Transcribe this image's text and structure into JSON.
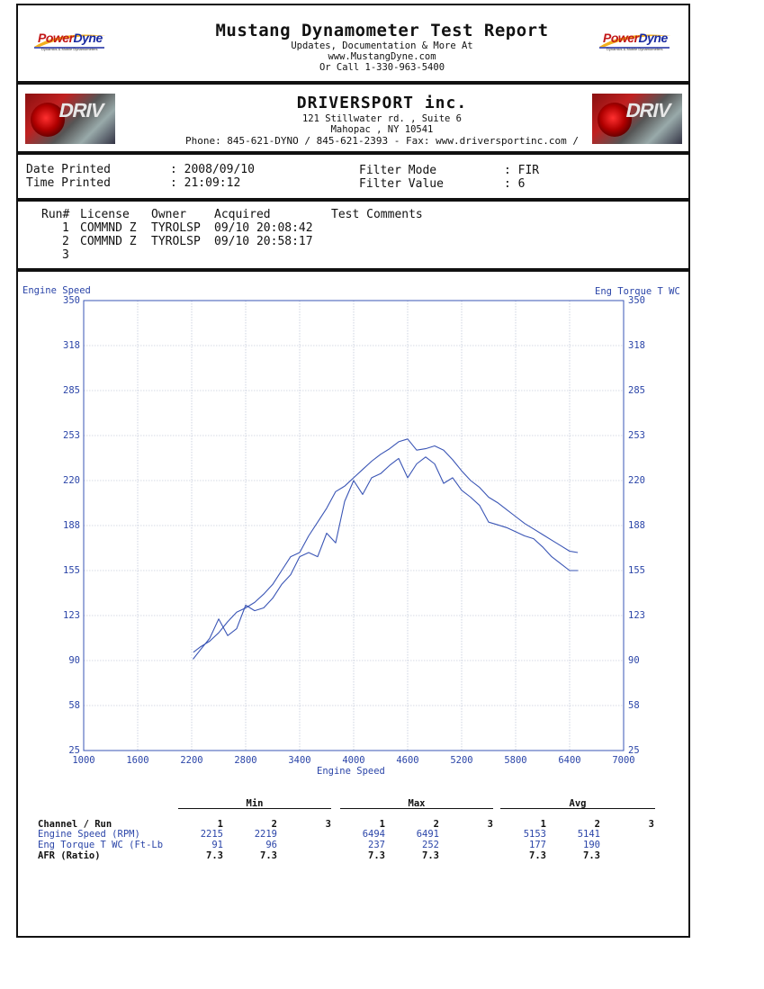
{
  "header": {
    "title": "Mustang Dynamometer Test Report",
    "line1": "Updates, Documentation & More At",
    "line2": "www.MustangDyne.com",
    "line3": "Or Call 1-330-963-5400",
    "logo_text_a": "Power",
    "logo_text_b": "Dyne",
    "logo_tag": "Dynamics & Mobile Dynamometers"
  },
  "shop": {
    "name": "DRIVERSPORT inc.",
    "address1": "121 Stillwater rd. , Suite 6",
    "address2": "Mahopac , NY  10541",
    "phone": "Phone: 845-621-DYNO / 845-621-2393 - Fax: www.driversportinc.com /",
    "image_brand": "DRIV"
  },
  "info": {
    "date_label": "Date Printed",
    "date_value": ": 2008/09/10",
    "time_label": "Time Printed",
    "time_value": ": 21:09:12",
    "filter_mode_label": "Filter Mode",
    "filter_mode_value": ": FIR",
    "filter_value_label": "Filter Value",
    "filter_value_value": ": 6"
  },
  "runs": {
    "headers": [
      "Run#",
      "License",
      "Owner",
      "Acquired",
      "Test Comments"
    ],
    "rows": [
      {
        "run": "1",
        "license": "COMMND Z",
        "owner": "TYROLSP",
        "acquired": "09/10 20:08:42"
      },
      {
        "run": "2",
        "license": "COMMND Z",
        "owner": "TYROLSP",
        "acquired": "09/10 20:58:17"
      },
      {
        "run": "3",
        "license": "",
        "owner": "",
        "acquired": ""
      }
    ]
  },
  "chart_data": {
    "type": "line",
    "left_axis_title": "Engine Speed",
    "right_axis_title": "Eng Torque T WC",
    "xlabel": "Engine Speed",
    "xlim": [
      1000,
      7000
    ],
    "ylim": [
      25,
      350
    ],
    "x_ticks": [
      "1000",
      "1600",
      "2200",
      "2800",
      "3400",
      "4000",
      "4600",
      "5200",
      "5800",
      "6400",
      "7000"
    ],
    "y_ticks": [
      "350",
      "318",
      "285",
      "253",
      "220",
      "188",
      "155",
      "123",
      "90",
      "58",
      "25"
    ],
    "color": "#3a55b5",
    "series": [
      {
        "name": "Run 1",
        "x": [
          2215,
          2300,
          2400,
          2500,
          2600,
          2700,
          2800,
          2900,
          3000,
          3100,
          3200,
          3300,
          3400,
          3500,
          3600,
          3700,
          3800,
          3900,
          4000,
          4100,
          4200,
          4300,
          4400,
          4500,
          4600,
          4700,
          4800,
          4900,
          5000,
          5100,
          5200,
          5300,
          5400,
          5500,
          5600,
          5700,
          5800,
          5900,
          6000,
          6100,
          6200,
          6300,
          6400,
          6494
        ],
        "y": [
          91,
          98,
          106,
          120,
          108,
          113,
          130,
          126,
          128,
          135,
          145,
          152,
          165,
          168,
          165,
          182,
          175,
          205,
          220,
          210,
          222,
          225,
          231,
          236,
          222,
          232,
          237,
          232,
          218,
          222,
          213,
          208,
          202,
          190,
          188,
          186,
          183,
          180,
          178,
          172,
          165,
          160,
          155,
          155
        ]
      },
      {
        "name": "Run 2",
        "x": [
          2219,
          2300,
          2400,
          2500,
          2600,
          2700,
          2800,
          2900,
          3000,
          3100,
          3200,
          3300,
          3400,
          3500,
          3600,
          3700,
          3800,
          3900,
          4000,
          4100,
          4200,
          4300,
          4400,
          4500,
          4600,
          4700,
          4800,
          4900,
          5000,
          5100,
          5200,
          5300,
          5400,
          5500,
          5600,
          5700,
          5800,
          5900,
          6000,
          6100,
          6200,
          6300,
          6400,
          6491
        ],
        "y": [
          96,
          100,
          104,
          110,
          118,
          125,
          128,
          132,
          138,
          145,
          155,
          165,
          168,
          180,
          190,
          200,
          212,
          216,
          222,
          228,
          234,
          239,
          243,
          248,
          250,
          242,
          243,
          245,
          242,
          235,
          227,
          220,
          215,
          208,
          204,
          199,
          194,
          189,
          185,
          181,
          177,
          173,
          169,
          168
        ]
      }
    ]
  },
  "stats": {
    "group_min": "Min",
    "group_max": "Max",
    "group_avg": "Avg",
    "channel_label": "Channel / Run",
    "run_cols": [
      "1",
      "2",
      "3"
    ],
    "rows": [
      {
        "label": "Engine Speed (RPM)",
        "min": [
          "2215",
          "2219",
          ""
        ],
        "max": [
          "6494",
          "6491",
          ""
        ],
        "avg": [
          "5153",
          "5141",
          ""
        ]
      },
      {
        "label": "Eng Torque T WC (Ft-Lb",
        "min": [
          "91",
          "96",
          ""
        ],
        "max": [
          "237",
          "252",
          ""
        ],
        "avg": [
          "177",
          "190",
          ""
        ]
      },
      {
        "label": "AFR (Ratio)",
        "min": [
          "7.3",
          "7.3",
          ""
        ],
        "max": [
          "7.3",
          "7.3",
          ""
        ],
        "avg": [
          "7.3",
          "7.3",
          ""
        ]
      }
    ]
  }
}
